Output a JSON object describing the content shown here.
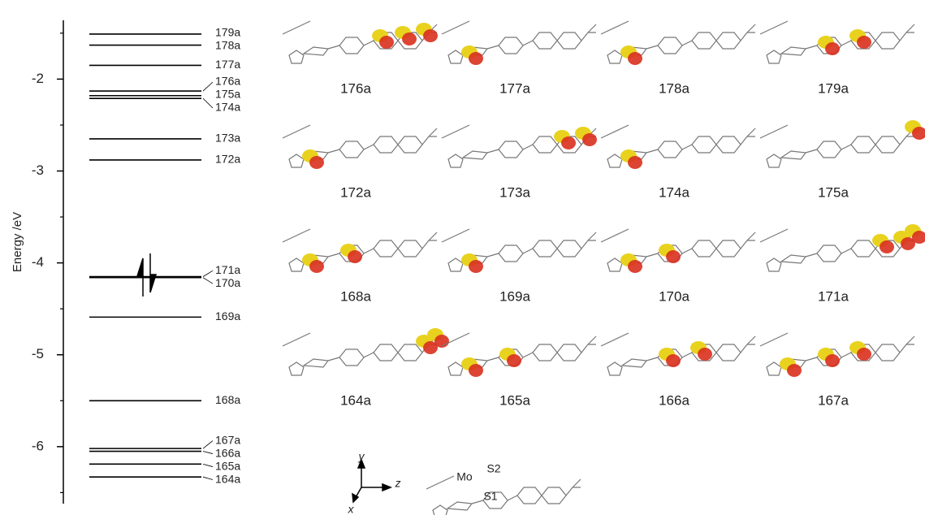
{
  "chart_data": {
    "type": "levels",
    "y_label": "Energy /eV",
    "ylim": [
      -6.62,
      -1.36
    ],
    "yticks": [
      -2,
      -3,
      -4,
      -5,
      -6
    ],
    "yminorticks": [
      -1.5,
      -2.5,
      -3.5,
      -4.5,
      -5.5,
      -6.5
    ],
    "color": "#000000",
    "categories": [
      "179a",
      "178a",
      "177a",
      "176a",
      "175a",
      "174a",
      "173a",
      "172a",
      "171a",
      "170a",
      "169a",
      "168a",
      "167a",
      "166a",
      "165a",
      "164a"
    ],
    "values": [
      -1.51,
      -1.63,
      -1.85,
      -2.13,
      -2.18,
      -2.21,
      -2.65,
      -2.88,
      -4.15,
      -4.16,
      -4.59,
      -5.5,
      -6.02,
      -6.05,
      -6.19,
      -6.33
    ]
  },
  "orbitals": [
    "176a",
    "177a",
    "178a",
    "179a",
    "172a",
    "173a",
    "174a",
    "175a",
    "168a",
    "169a",
    "170a",
    "171a",
    "164a",
    "165a",
    "166a",
    "167a"
  ],
  "structure": {
    "axes": [
      "y",
      "z",
      "x"
    ],
    "atoms": [
      "Mo",
      "S2",
      "S1"
    ]
  }
}
